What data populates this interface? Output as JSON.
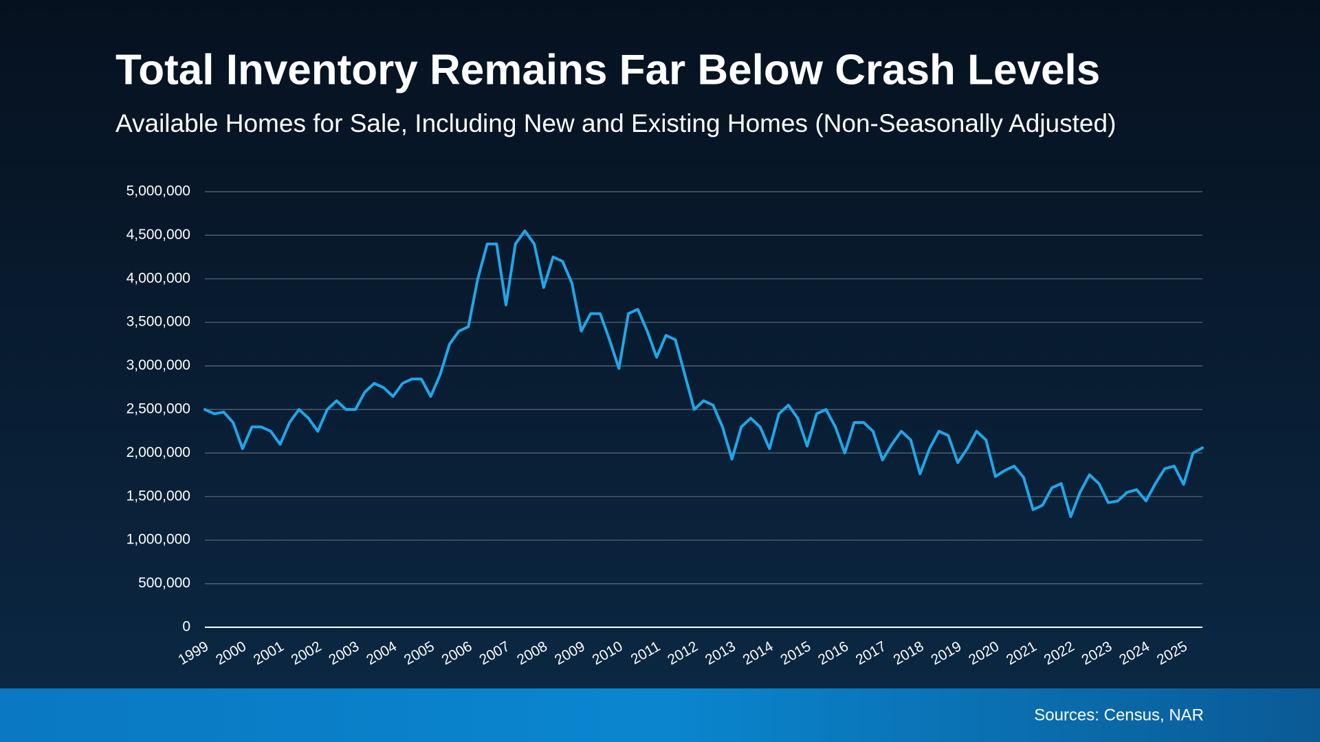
{
  "chart_data": {
    "type": "line",
    "title": "Total Inventory Remains Far Below Crash Levels",
    "subtitle": "Available Homes for Sale, Including New and Existing Homes (Non-Seasonally Adjusted)",
    "source": "Sources: Census, NAR",
    "categories": [
      "1999",
      null,
      null,
      null,
      "2000",
      null,
      null,
      null,
      "2001",
      null,
      null,
      null,
      "2002",
      null,
      null,
      null,
      "2003",
      null,
      null,
      null,
      "2004",
      null,
      null,
      null,
      "2005",
      null,
      null,
      null,
      "2006",
      null,
      null,
      null,
      "2007",
      null,
      null,
      null,
      "2008",
      null,
      null,
      null,
      "2009",
      null,
      null,
      null,
      "2010",
      null,
      null,
      null,
      "2011",
      null,
      null,
      null,
      "2012",
      null,
      null,
      null,
      "2013",
      null,
      null,
      null,
      "2014",
      null,
      null,
      null,
      "2015",
      null,
      null,
      null,
      "2016",
      null,
      null,
      null,
      "2017",
      null,
      null,
      null,
      "2018",
      null,
      null,
      null,
      "2019",
      null,
      null,
      null,
      "2020",
      null,
      null,
      null,
      "2021",
      null,
      null,
      null,
      "2022",
      null,
      null,
      null,
      "2023",
      null,
      null,
      null,
      "2024",
      null,
      null,
      null,
      "2025",
      null,
      null
    ],
    "series": [
      {
        "name": "Total Inventory",
        "color": "#1ea7ea",
        "values": [
          2500000,
          2450000,
          2470000,
          2350000,
          2050000,
          2300000,
          2300000,
          2250000,
          2100000,
          2350000,
          2500000,
          2400000,
          2250000,
          2500000,
          2600000,
          2500000,
          2500000,
          2700000,
          2800000,
          2750000,
          2650000,
          2800000,
          2850000,
          2850000,
          2650000,
          2900000,
          3250000,
          3400000,
          3450000,
          4000000,
          4400000,
          4400000,
          3700000,
          4400000,
          4550000,
          4400000,
          3900000,
          4250000,
          4200000,
          3950000,
          3400000,
          3600000,
          3600000,
          3300000,
          2970000,
          3600000,
          3650000,
          3400000,
          3100000,
          3350000,
          3300000,
          2900000,
          2500000,
          2600000,
          2550000,
          2300000,
          1930000,
          2300000,
          2400000,
          2300000,
          2050000,
          2450000,
          2550000,
          2400000,
          2080000,
          2450000,
          2500000,
          2300000,
          2000000,
          2350000,
          2350000,
          2250000,
          1920000,
          2100000,
          2250000,
          2150000,
          1760000,
          2050000,
          2250000,
          2200000,
          1890000,
          2050000,
          2250000,
          2150000,
          1730000,
          1800000,
          1850000,
          1720000,
          1350000,
          1400000,
          1600000,
          1650000,
          1270000,
          1550000,
          1750000,
          1650000,
          1430000,
          1450000,
          1550000,
          1580000,
          1450000,
          1650000,
          1820000,
          1850000,
          1640000,
          2000000,
          2060000
        ]
      }
    ],
    "ylim": [
      0,
      5000000
    ],
    "yticks": [
      0,
      {
        "value": 500000,
        "label": "500,000"
      },
      {
        "value": 1000000,
        "label": "1,000,000"
      },
      {
        "value": 1500000,
        "label": "1,500,000"
      },
      {
        "value": 2000000,
        "label": "2,000,000"
      },
      {
        "value": 2500000,
        "label": "2,500,000"
      },
      {
        "value": 3000000,
        "label": "3,000,000"
      },
      {
        "value": 3500000,
        "label": "3,500,000"
      },
      {
        "value": 4000000,
        "label": "4,000,000"
      },
      {
        "value": 4500000,
        "label": "4,500,000"
      },
      {
        "value": 5000000,
        "label": "5,000,000"
      }
    ],
    "grid": true
  }
}
